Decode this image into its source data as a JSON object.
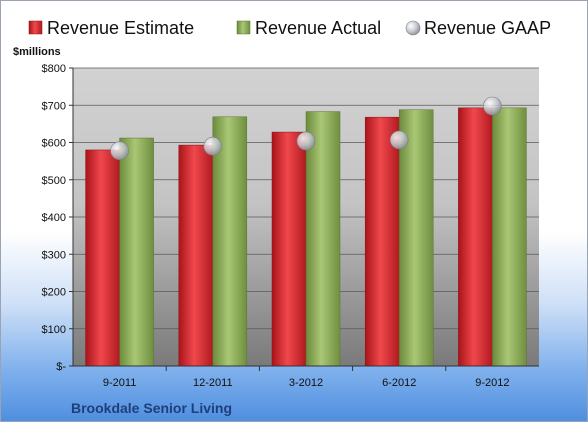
{
  "chart_data": {
    "type": "bar",
    "categories": [
      "9-2011",
      "12-2011",
      "3-2012",
      "6-2012",
      "9-2012"
    ],
    "series": [
      {
        "name": "Revenue Estimate",
        "values": [
          580,
          593,
          628,
          668,
          693
        ],
        "color": "#d9262b",
        "marker": "bar"
      },
      {
        "name": "Revenue Actual",
        "values": [
          612,
          669,
          683,
          688,
          693
        ],
        "color": "#8bab56",
        "marker": "bar"
      },
      {
        "name": "Revenue GAAP",
        "values": [
          578,
          590,
          604,
          607,
          698
        ],
        "color": "#c9ccd3",
        "marker": "sphere"
      }
    ],
    "yunit": "$millions",
    "yticks": [
      {
        "value": 0,
        "label": "$-"
      },
      {
        "value": 100,
        "label": "$100"
      },
      {
        "value": 200,
        "label": "$200"
      },
      {
        "value": 300,
        "label": "$300"
      },
      {
        "value": 400,
        "label": "$400"
      },
      {
        "value": 500,
        "label": "$500"
      },
      {
        "value": 600,
        "label": "$600"
      },
      {
        "value": 700,
        "label": "$700"
      },
      {
        "value": 800,
        "label": "$800"
      }
    ],
    "ylim": [
      0,
      800
    ],
    "grid": true,
    "legend_position": "top"
  },
  "company": "Brookdale Senior Living"
}
